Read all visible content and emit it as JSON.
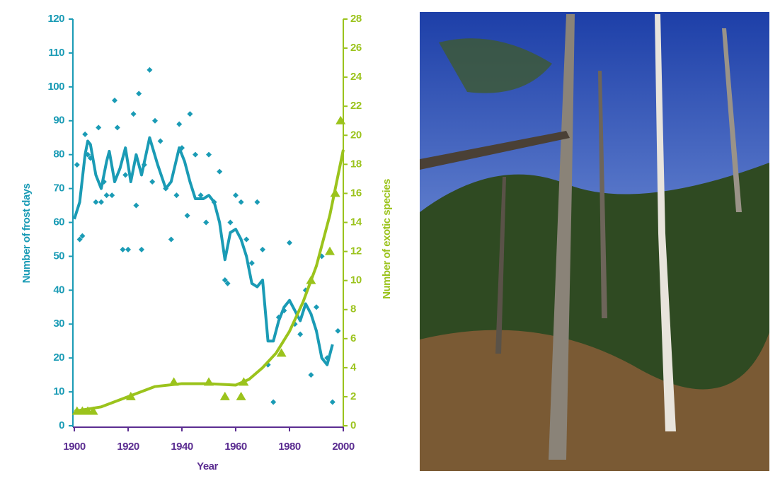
{
  "chart_data": {
    "type": "combo",
    "x_label": "Year",
    "y_label": "Number of frost days",
    "y2_label": "Number of exotic species",
    "xlim": [
      1900,
      2000
    ],
    "xticks": [
      1900,
      1920,
      1940,
      1960,
      1980,
      2000
    ],
    "ylim": [
      0,
      120
    ],
    "yticks": [
      0,
      10,
      20,
      30,
      40,
      50,
      60,
      70,
      80,
      90,
      100,
      110,
      120
    ],
    "y2lim": [
      0,
      28
    ],
    "y2ticks": [
      0,
      2,
      4,
      6,
      8,
      10,
      12,
      14,
      16,
      18,
      20,
      22,
      24,
      26,
      28
    ],
    "x_color": "#5b2d91",
    "series": [
      {
        "type": "scatter",
        "color": "#1a9bb5",
        "x": [
          1901,
          1902,
          1903,
          1904,
          1905,
          1906,
          1908,
          1909,
          1910,
          1911,
          1912,
          1914,
          1915,
          1916,
          1918,
          1919,
          1920,
          1922,
          1923,
          1924,
          1925,
          1926,
          1928,
          1929,
          1930,
          1932,
          1934,
          1936,
          1938,
          1939,
          1940,
          1942,
          1943,
          1945,
          1947,
          1949,
          1950,
          1952,
          1954,
          1956,
          1957,
          1958,
          1960,
          1962,
          1964,
          1966,
          1968,
          1970,
          1972,
          1974,
          1976,
          1978,
          1980,
          1982,
          1984,
          1986,
          1988,
          1990,
          1992,
          1994,
          1996,
          1998
        ],
        "values": [
          77,
          55,
          56,
          86,
          80,
          79,
          66,
          88,
          66,
          72,
          68,
          68,
          96,
          88,
          52,
          74,
          52,
          92,
          65,
          98,
          52,
          77,
          105,
          72,
          90,
          84,
          70,
          55,
          68,
          89,
          82,
          62,
          92,
          80,
          68,
          60,
          80,
          66,
          75,
          43,
          42,
          60,
          68,
          66,
          55,
          48,
          66,
          52,
          18,
          7,
          32,
          34,
          54,
          30,
          27,
          40,
          15,
          35,
          50,
          20,
          7,
          28
        ]
      },
      {
        "type": "line",
        "color": "#1a9bb5",
        "x": [
          1900,
          1902,
          1904,
          1905,
          1906,
          1908,
          1910,
          1912,
          1913,
          1915,
          1917,
          1919,
          1921,
          1923,
          1925,
          1928,
          1931,
          1934,
          1936,
          1939,
          1941,
          1943,
          1945,
          1948,
          1950,
          1952,
          1954,
          1956,
          1958,
          1960,
          1962,
          1964,
          1966,
          1968,
          1970,
          1972,
          1974,
          1976,
          1978,
          1980,
          1982,
          1984,
          1986,
          1988,
          1990,
          1992,
          1994,
          1996
        ],
        "values": [
          61,
          66,
          80,
          84,
          83,
          74,
          70,
          78,
          81,
          72,
          76,
          82,
          72,
          80,
          74,
          85,
          77,
          70,
          72,
          82,
          78,
          72,
          67,
          67,
          68,
          66,
          60,
          49,
          57,
          58,
          55,
          50,
          42,
          41,
          43,
          25,
          25,
          31,
          35,
          37,
          34,
          31,
          36,
          33,
          28,
          20,
          18,
          24
        ]
      },
      {
        "type": "scatter-triangle",
        "axis": "y2",
        "color": "#9bc31c",
        "x": [
          1901,
          1903,
          1905,
          1907,
          1921,
          1937,
          1950,
          1956,
          1962,
          1963,
          1977,
          1988,
          1995,
          1997,
          1999
        ],
        "values": [
          1,
          1,
          1,
          1,
          2,
          3,
          3,
          2,
          2,
          3,
          5,
          10,
          12,
          16,
          21
        ]
      },
      {
        "type": "line",
        "axis": "y2",
        "color": "#9bc31c",
        "x": [
          1900,
          1910,
          1920,
          1930,
          1940,
          1950,
          1960,
          1965,
          1970,
          1975,
          1980,
          1985,
          1990,
          1995,
          2000
        ],
        "values": [
          1,
          1.3,
          2,
          2.7,
          2.9,
          2.9,
          2.8,
          3.2,
          4,
          5,
          6.5,
          8.5,
          11,
          14.5,
          19
        ]
      }
    ]
  }
}
